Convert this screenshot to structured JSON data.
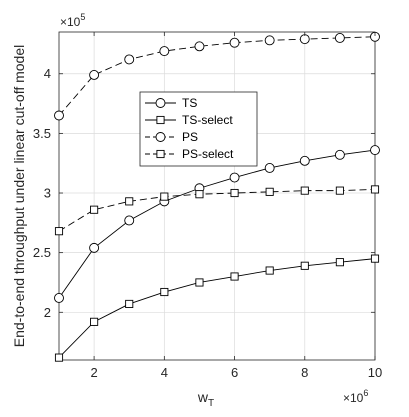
{
  "chart_data": {
    "type": "line",
    "title": "",
    "xlabel": "w",
    "xlabel_subscript": "T",
    "ylabel": "End-to-end throughput under linear cut-off model",
    "x_multiplier": "×10",
    "x_exponent": "6",
    "y_multiplier": "×10",
    "y_exponent": "5",
    "xlim": [
      1,
      10
    ],
    "ylim": [
      1.6,
      4.35
    ],
    "xticks": [
      2,
      4,
      6,
      8,
      10
    ],
    "xtick_labels": [
      "2",
      "4",
      "6",
      "8",
      "10"
    ],
    "yticks": [
      2,
      2.5,
      3,
      3.5,
      4
    ],
    "ytick_labels": [
      "2",
      "2.5",
      "3",
      "3.5",
      "4"
    ],
    "grid": true,
    "legend_position": "center-left",
    "x": [
      1,
      2,
      3,
      4,
      5,
      6,
      7,
      8,
      9,
      10
    ],
    "series": [
      {
        "name": "TS",
        "marker": "circle",
        "line": "solid",
        "values": [
          2.12,
          2.54,
          2.77,
          2.93,
          3.04,
          3.13,
          3.21,
          3.27,
          3.32,
          3.36
        ]
      },
      {
        "name": "TS-select",
        "marker": "square",
        "line": "solid",
        "values": [
          1.62,
          1.92,
          2.07,
          2.17,
          2.25,
          2.3,
          2.35,
          2.39,
          2.42,
          2.45
        ]
      },
      {
        "name": "PS",
        "marker": "circle",
        "line": "dashed",
        "values": [
          3.65,
          3.99,
          4.12,
          4.19,
          4.23,
          4.26,
          4.28,
          4.29,
          4.3,
          4.31
        ]
      },
      {
        "name": "PS-select",
        "marker": "square",
        "line": "dashed",
        "values": [
          2.68,
          2.86,
          2.93,
          2.97,
          2.99,
          3.0,
          3.01,
          3.02,
          3.02,
          3.03
        ]
      }
    ]
  }
}
